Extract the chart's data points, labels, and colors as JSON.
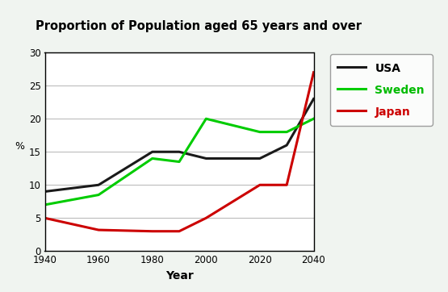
{
  "title": "Proportion of Population aged 65 years and over",
  "xlabel": "Year",
  "ylabel": "%",
  "xlim": [
    1940,
    2040
  ],
  "ylim": [
    0,
    30
  ],
  "xticks": [
    1940,
    1960,
    1980,
    2000,
    2020,
    2040
  ],
  "yticks": [
    0,
    5,
    10,
    15,
    20,
    25,
    30
  ],
  "background_color": "#f0f4f0",
  "plot_bg": "#ffffff",
  "series": {
    "USA": {
      "x": [
        1940,
        1960,
        1980,
        1990,
        2000,
        2020,
        2030,
        2040
      ],
      "y": [
        9,
        10,
        15,
        15,
        14,
        14,
        16,
        23
      ],
      "color": "#1a1a1a",
      "linewidth": 2.2,
      "label_color": "#000000"
    },
    "Sweden": {
      "x": [
        1940,
        1960,
        1980,
        1990,
        2000,
        2020,
        2030,
        2040
      ],
      "y": [
        7,
        8.5,
        14,
        13.5,
        20,
        18,
        18,
        20
      ],
      "color": "#00cc00",
      "linewidth": 2.2,
      "label_color": "#00bb00"
    },
    "Japan": {
      "x": [
        1940,
        1960,
        1980,
        1990,
        2000,
        2020,
        2030,
        2040
      ],
      "y": [
        5,
        3.2,
        3,
        3,
        5,
        10,
        10,
        27
      ],
      "color": "#cc0000",
      "linewidth": 2.2,
      "label_color": "#cc0000"
    }
  },
  "legend_facecolor": "#ffffff",
  "legend_edgecolor": "#888888"
}
